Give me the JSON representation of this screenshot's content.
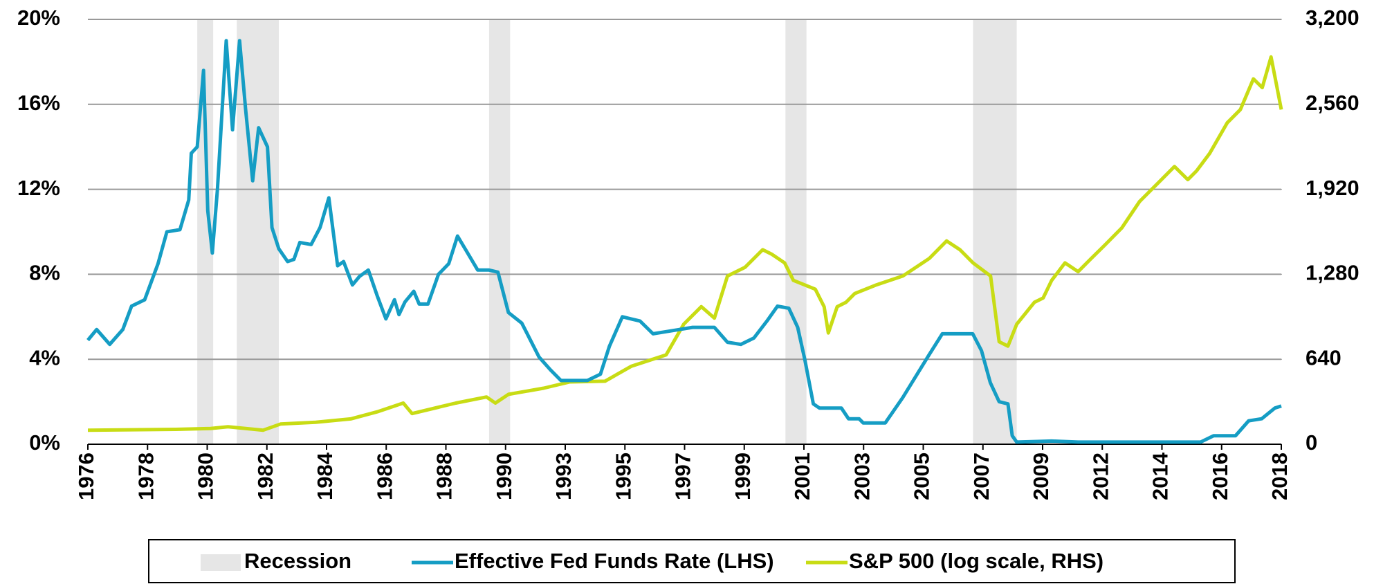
{
  "chart_data": {
    "type": "line",
    "xlim": [
      1976,
      2018
    ],
    "xticks": [
      {
        "value": 1976,
        "label": "1976"
      },
      {
        "value": 1978.1,
        "label": "1978"
      },
      {
        "value": 1980.2,
        "label": "1980"
      },
      {
        "value": 1982.3,
        "label": "1982"
      },
      {
        "value": 1984.4,
        "label": "1984"
      },
      {
        "value": 1986.5,
        "label": "1986"
      },
      {
        "value": 1988.6,
        "label": "1988"
      },
      {
        "value": 1990.7,
        "label": "1990"
      },
      {
        "value": 1992.8,
        "label": "1993"
      },
      {
        "value": 1994.9,
        "label": "1995"
      },
      {
        "value": 1997,
        "label": "1997"
      },
      {
        "value": 1999.1,
        "label": "1999"
      },
      {
        "value": 2001.2,
        "label": "2001"
      },
      {
        "value": 2003.3,
        "label": "2003"
      },
      {
        "value": 2005.4,
        "label": "2005"
      },
      {
        "value": 2007.5,
        "label": "2007"
      },
      {
        "value": 2009.6,
        "label": "2009"
      },
      {
        "value": 2011.7,
        "label": "2012"
      },
      {
        "value": 2013.8,
        "label": "2014"
      },
      {
        "value": 2015.9,
        "label": "2016"
      },
      {
        "value": 2018,
        "label": "2018"
      }
    ],
    "ylim": [
      0,
      20
    ],
    "yticks": [
      {
        "value": 0,
        "label": "0%"
      },
      {
        "value": 4,
        "label": "4%"
      },
      {
        "value": 8,
        "label": "8%"
      },
      {
        "value": 12,
        "label": "12%"
      },
      {
        "value": 16,
        "label": "16%"
      },
      {
        "value": 20,
        "label": "20%"
      }
    ],
    "y2lim": [
      0,
      3200
    ],
    "y2ticks": [
      0,
      640,
      {
        "value": 1280,
        "label": "1,280"
      },
      {
        "value": 1920,
        "label": "1,920"
      },
      {
        "value": 2560,
        "label": "2,560"
      },
      {
        "value": 3200,
        "label": "3,200"
      }
    ],
    "grid": true,
    "legend": "bottom",
    "bands": {
      "name": "Recession",
      "color": "#e6e6e6",
      "ranges": [
        [
          1979.85,
          1980.41
        ],
        [
          1981.24,
          1982.72
        ],
        [
          1990.12,
          1990.86
        ],
        [
          2000.55,
          2001.29
        ],
        [
          2007.15,
          2008.69
        ]
      ]
    },
    "series": [
      {
        "name": "Effective Fed Funds Rate (LHS)",
        "color": "#159dc4",
        "axis": "y",
        "x": [
          1976,
          1976.31,
          1976.77,
          1977.23,
          1977.54,
          1978,
          1978.47,
          1978.78,
          1979.24,
          1979.55,
          1979.64,
          1979.85,
          1980.07,
          1980.22,
          1980.38,
          1980.56,
          1980.87,
          1981.09,
          1981.34,
          1981.55,
          1981.8,
          1982.01,
          1982.32,
          1982.48,
          1982.72,
          1983.03,
          1983.25,
          1983.46,
          1983.86,
          1984.17,
          1984.48,
          1984.79,
          1985,
          1985.31,
          1985.56,
          1985.87,
          1986.18,
          1986.49,
          1986.79,
          1986.95,
          1987.16,
          1987.47,
          1987.66,
          1987.97,
          1988.34,
          1988.7,
          1989.01,
          1989.32,
          1989.72,
          1990.12,
          1990.43,
          1990.8,
          1991.27,
          1991.88,
          1992.28,
          1992.65,
          1993.12,
          1993.58,
          1994.04,
          1994.35,
          1994.81,
          1995.12,
          1995.43,
          1995.89,
          1996.35,
          1996.82,
          1997.28,
          1998.05,
          1998.51,
          1998.98,
          1999.44,
          1999.9,
          2000.27,
          2000.67,
          2000.98,
          2001.23,
          2001.53,
          2001.75,
          2002.52,
          2002.77,
          2003.14,
          2003.29,
          2004.06,
          2004.68,
          2005.6,
          2006.07,
          2007.14,
          2007.45,
          2007.76,
          2008.07,
          2008.38,
          2008.53,
          2008.69,
          2009.92,
          2010.85,
          2012.08,
          2013,
          2013.93,
          2015.16,
          2015.62,
          2016.39,
          2016.85,
          2017.31,
          2017.77,
          2018
        ],
        "values": [
          4.9,
          5.4,
          4.7,
          5.4,
          6.5,
          6.8,
          8.5,
          10,
          10.1,
          11.5,
          13.7,
          14,
          17.6,
          11,
          9,
          12,
          19,
          14.8,
          19,
          15.8,
          12.4,
          14.9,
          14,
          10.2,
          9.2,
          8.6,
          8.7,
          9.5,
          9.4,
          10.2,
          11.6,
          8.4,
          8.6,
          7.5,
          7.9,
          8.2,
          7,
          5.9,
          6.8,
          6.1,
          6.7,
          7.2,
          6.6,
          6.6,
          8,
          8.5,
          9.8,
          9.1,
          8.2,
          8.2,
          8.1,
          6.2,
          5.7,
          4.1,
          3.5,
          3,
          3,
          3,
          3.3,
          4.6,
          6,
          5.9,
          5.8,
          5.2,
          5.3,
          5.4,
          5.5,
          5.5,
          4.8,
          4.7,
          5,
          5.8,
          6.5,
          6.4,
          5.5,
          4,
          1.9,
          1.7,
          1.7,
          1.2,
          1.2,
          1,
          1,
          2.2,
          4.2,
          5.2,
          5.2,
          4.4,
          2.9,
          2,
          1.9,
          0.4,
          0.1,
          0.15,
          0.1,
          0.1,
          0.1,
          0.1,
          0.1,
          0.4,
          0.4,
          1.1,
          1.2,
          1.7,
          1.8
        ]
      },
      {
        "name": "S&P 500 (log scale, RHS)",
        "color": "#c8dc14",
        "axis": "y2",
        "x": [
          1976,
          1979.08,
          1980.32,
          1980.93,
          1982.17,
          1982.78,
          1984.02,
          1985.25,
          1986.18,
          1987.1,
          1987.41,
          1988.95,
          1990.03,
          1990.34,
          1990.8,
          1992.04,
          1992.96,
          1994.2,
          1995.12,
          1996.35,
          1996.97,
          1997.59,
          1998.05,
          1998.51,
          1999.13,
          1999.75,
          2000.06,
          2000.52,
          2000.83,
          2001.6,
          2001.91,
          2002.06,
          2002.37,
          2002.68,
          2002.99,
          2003.76,
          2004.68,
          2005.61,
          2006.22,
          2006.69,
          2007.15,
          2007.77,
          2008.07,
          2008.38,
          2008.69,
          2009.31,
          2009.62,
          2009.92,
          2010.39,
          2010.85,
          2011.31,
          2011.78,
          2012.39,
          2013.01,
          2013.63,
          2014.24,
          2014.71,
          2015.02,
          2015.48,
          2016.1,
          2016.56,
          2017.02,
          2017.33,
          2017.64,
          2017.79,
          2018
        ],
        "values": [
          106,
          112,
          119,
          132,
          106,
          152,
          165,
          191,
          244,
          310,
          231,
          310,
          356,
          310,
          376,
          422,
          469,
          475,
          587,
          673,
          904,
          1036,
          950,
          1267,
          1333,
          1465,
          1432,
          1366,
          1234,
          1168,
          1036,
          838,
          1036,
          1069,
          1135,
          1201,
          1267,
          1399,
          1531,
          1465,
          1366,
          1267,
          772,
          739,
          904,
          1069,
          1102,
          1234,
          1366,
          1300,
          1399,
          1498,
          1630,
          1828,
          1960,
          2092,
          1993,
          2059,
          2191,
          2422,
          2521,
          2752,
          2686,
          2917,
          2752,
          2521
        ]
      }
    ]
  }
}
